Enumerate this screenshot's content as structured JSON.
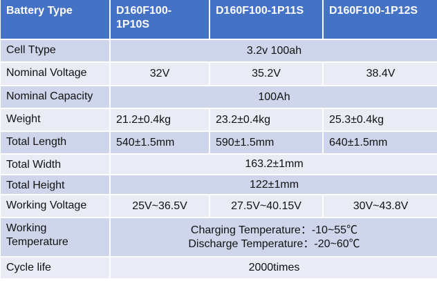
{
  "header": {
    "cells": [
      [
        "Battery Type"
      ],
      [
        "D160F100-",
        "1P10S"
      ],
      [
        "D160F100-1P11S"
      ],
      [
        "D160F100-1P12S"
      ]
    ]
  },
  "rows": [
    {
      "cells": [
        [
          "Cell Ttype"
        ],
        [
          "3.2v 100ah"
        ]
      ]
    },
    {
      "cells": [
        [
          "Nominal Voltage"
        ],
        [
          "32V"
        ],
        [
          "35.2V"
        ],
        [
          "38.4V"
        ]
      ]
    },
    {
      "cells": [
        [
          "Nominal Capacity"
        ],
        [
          "100Ah"
        ]
      ]
    },
    {
      "cells": [
        [
          "Weight"
        ],
        [
          "21.2±0.4kg"
        ],
        [
          "23.2±0.4kg"
        ],
        [
          "25.3±0.4kg"
        ]
      ]
    },
    {
      "cells": [
        [
          "Total Length"
        ],
        [
          "540±1.5mm"
        ],
        [
          "590±1.5mm"
        ],
        [
          "640±1.5mm"
        ]
      ]
    },
    {
      "cells": [
        [
          "Total Width"
        ],
        [
          "163.2±1mm"
        ]
      ]
    },
    {
      "cells": [
        [
          "Total Height"
        ],
        [
          "122±1mm"
        ]
      ]
    },
    {
      "cells": [
        [
          "Working Voltage"
        ],
        [
          "25V~36.5V"
        ],
        [
          "27.5V~40.15V"
        ],
        [
          "30V~43.8V"
        ]
      ]
    },
    {
      "cells": [
        [
          "Working",
          "Temperature"
        ],
        [
          "Charging Temperature：-10~55℃",
          "Discharge Temperature：-20~60℃"
        ]
      ]
    },
    {
      "cells": [
        [
          "Cycle life"
        ],
        [
          "2000times"
        ]
      ]
    }
  ]
}
